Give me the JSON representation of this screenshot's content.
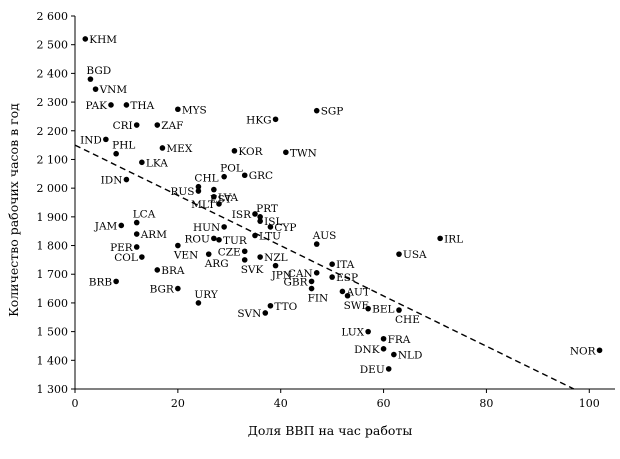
{
  "chart_data": {
    "type": "scatter",
    "xlabel": "Доля ВВП на час работы",
    "ylabel": "Количество рабочих часов в год",
    "xlim": [
      0,
      105
    ],
    "ylim": [
      1300,
      2600
    ],
    "xticks": [
      0,
      20,
      40,
      60,
      80,
      100
    ],
    "xtick_labels": [
      "0",
      "20",
      "40",
      "60",
      "80",
      "100"
    ],
    "yticks": [
      1300,
      1400,
      1500,
      1600,
      1700,
      1800,
      1900,
      2000,
      2100,
      2200,
      2300,
      2400,
      2500,
      2600
    ],
    "ytick_labels": [
      "1 300",
      "1 400",
      "1 500",
      "1 600",
      "1 700",
      "1 800",
      "1 900",
      "2 000",
      "2 100",
      "2 200",
      "2 300",
      "2 400",
      "2 500",
      "2 600"
    ],
    "grid": false,
    "trendline": {
      "style": "dashed",
      "x": [
        0,
        97
      ],
      "y": [
        2150,
        1300
      ]
    },
    "points": [
      {
        "label": "KHM",
        "x": 2,
        "y": 2520,
        "side": "right"
      },
      {
        "label": "BGD",
        "x": 3,
        "y": 2380,
        "side": "above"
      },
      {
        "label": "VNM",
        "x": 4,
        "y": 2345,
        "side": "right"
      },
      {
        "label": "PAK",
        "x": 7,
        "y": 2290,
        "side": "left"
      },
      {
        "label": "THA",
        "x": 10,
        "y": 2290,
        "side": "right"
      },
      {
        "label": "MYS",
        "x": 20,
        "y": 2275,
        "side": "right"
      },
      {
        "label": "SGP",
        "x": 47,
        "y": 2270,
        "side": "right"
      },
      {
        "label": "HKG",
        "x": 39,
        "y": 2240,
        "side": "left"
      },
      {
        "label": "CRI",
        "x": 12,
        "y": 2220,
        "side": "left"
      },
      {
        "label": "ZAF",
        "x": 16,
        "y": 2220,
        "side": "right"
      },
      {
        "label": "IND",
        "x": 6,
        "y": 2170,
        "side": "left"
      },
      {
        "label": "PHL",
        "x": 8,
        "y": 2120,
        "side": "above"
      },
      {
        "label": "MEX",
        "x": 17,
        "y": 2140,
        "side": "right"
      },
      {
        "label": "KOR",
        "x": 31,
        "y": 2130,
        "side": "right"
      },
      {
        "label": "TWN",
        "x": 41,
        "y": 2125,
        "side": "right"
      },
      {
        "label": "LKA",
        "x": 13,
        "y": 2090,
        "side": "right"
      },
      {
        "label": "POL",
        "x": 29,
        "y": 2040,
        "side": "above"
      },
      {
        "label": "GRC",
        "x": 33,
        "y": 2045,
        "side": "right"
      },
      {
        "label": "IDN",
        "x": 10,
        "y": 2030,
        "side": "left"
      },
      {
        "label": "CHL",
        "x": 24,
        "y": 2005,
        "side": "above"
      },
      {
        "label": "EST",
        "x": 27,
        "y": 1995,
        "side": "below"
      },
      {
        "label": "RUS",
        "x": 24,
        "y": 1990,
        "side": "left"
      },
      {
        "label": "LVA",
        "x": 27,
        "y": 1970,
        "side": "right"
      },
      {
        "label": "MLT",
        "x": 28,
        "y": 1945,
        "side": "left"
      },
      {
        "label": "ISR",
        "x": 35,
        "y": 1910,
        "side": "left"
      },
      {
        "label": "PRT",
        "x": 36,
        "y": 1900,
        "side": "above"
      },
      {
        "label": "ISL",
        "x": 36,
        "y": 1885,
        "side": "right"
      },
      {
        "label": "LCA",
        "x": 12,
        "y": 1880,
        "side": "above"
      },
      {
        "label": "JAM",
        "x": 9,
        "y": 1870,
        "side": "left"
      },
      {
        "label": "HUN",
        "x": 29,
        "y": 1865,
        "side": "left"
      },
      {
        "label": "CYP",
        "x": 38,
        "y": 1865,
        "side": "right"
      },
      {
        "label": "ARM",
        "x": 12,
        "y": 1840,
        "side": "right"
      },
      {
        "label": "ROU",
        "x": 27,
        "y": 1825,
        "side": "left"
      },
      {
        "label": "TUR",
        "x": 28,
        "y": 1820,
        "side": "right"
      },
      {
        "label": "LTU",
        "x": 35,
        "y": 1835,
        "side": "right"
      },
      {
        "label": "AUS",
        "x": 47,
        "y": 1805,
        "side": "above"
      },
      {
        "label": "IRL",
        "x": 71,
        "y": 1825,
        "side": "right"
      },
      {
        "label": "PER",
        "x": 12,
        "y": 1795,
        "side": "left"
      },
      {
        "label": "VEN",
        "x": 20,
        "y": 1800,
        "side": "below"
      },
      {
        "label": "CZE",
        "x": 33,
        "y": 1780,
        "side": "left"
      },
      {
        "label": "NZL",
        "x": 36,
        "y": 1760,
        "side": "right"
      },
      {
        "label": "USA",
        "x": 63,
        "y": 1770,
        "side": "right"
      },
      {
        "label": "COL",
        "x": 13,
        "y": 1760,
        "side": "left"
      },
      {
        "label": "ARG",
        "x": 26,
        "y": 1770,
        "side": "below"
      },
      {
        "label": "SVK",
        "x": 33,
        "y": 1750,
        "side": "below"
      },
      {
        "label": "BRA",
        "x": 16,
        "y": 1715,
        "side": "right"
      },
      {
        "label": "ITA",
        "x": 50,
        "y": 1735,
        "side": "right"
      },
      {
        "label": "JPN",
        "x": 39,
        "y": 1730,
        "side": "below"
      },
      {
        "label": "CAN",
        "x": 47,
        "y": 1705,
        "side": "left"
      },
      {
        "label": "ESP",
        "x": 50,
        "y": 1690,
        "side": "right"
      },
      {
        "label": "GBR",
        "x": 46,
        "y": 1675,
        "side": "left"
      },
      {
        "label": "BRB",
        "x": 8,
        "y": 1675,
        "side": "left"
      },
      {
        "label": "BGR",
        "x": 20,
        "y": 1650,
        "side": "left"
      },
      {
        "label": "URY",
        "x": 24,
        "y": 1600,
        "side": "above"
      },
      {
        "label": "FIN",
        "x": 46,
        "y": 1650,
        "side": "below"
      },
      {
        "label": "AUT",
        "x": 52,
        "y": 1640,
        "side": "right"
      },
      {
        "label": "SWE",
        "x": 53,
        "y": 1625,
        "side": "below"
      },
      {
        "label": "BEL",
        "x": 57,
        "y": 1580,
        "side": "right"
      },
      {
        "label": "TTO",
        "x": 38,
        "y": 1590,
        "side": "right"
      },
      {
        "label": "SVN",
        "x": 37,
        "y": 1565,
        "side": "left"
      },
      {
        "label": "CHE",
        "x": 63,
        "y": 1575,
        "side": "below"
      },
      {
        "label": "LUX",
        "x": 57,
        "y": 1500,
        "side": "left"
      },
      {
        "label": "FRA",
        "x": 60,
        "y": 1475,
        "side": "right"
      },
      {
        "label": "DNK",
        "x": 60,
        "y": 1440,
        "side": "left"
      },
      {
        "label": "NLD",
        "x": 62,
        "y": 1420,
        "side": "right"
      },
      {
        "label": "NOR",
        "x": 102,
        "y": 1435,
        "side": "left"
      },
      {
        "label": "DEU",
        "x": 61,
        "y": 1370,
        "side": "left"
      }
    ]
  }
}
